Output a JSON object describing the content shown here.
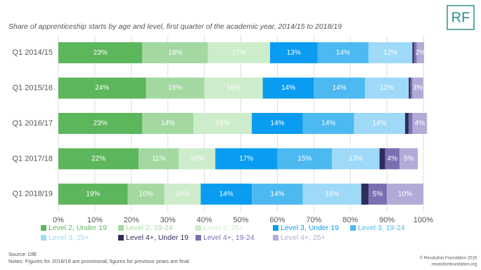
{
  "chart_data": {
    "type": "stacked_barh",
    "title": "Share of apprenticeship starts by age and level, first quarter of the academic year, 2014/15 to 2018/19",
    "logo": "RF",
    "source": "Source: DfE",
    "notes": "Notes: Figures for 2018/19 are provisional; figures for previous years are final",
    "credit": "© Resolution Foundation 2019",
    "website": "resolutionfoundation.org",
    "categories": [
      "Q1 2014/15",
      "Q1 2015/16",
      "Q1 2016/17",
      "Q1 2017/18",
      "Q1 2018/19"
    ],
    "series": [
      {
        "name": "Level 2, Under 19",
        "color": "#5cb65c",
        "values": [
          23,
          24,
          23,
          22,
          19
        ],
        "value_labels": [
          "23%",
          "24%",
          "23%",
          "22%",
          "19%"
        ]
      },
      {
        "name": "Level 2, 19-24",
        "color": "#a3d9a1",
        "values": [
          18,
          16,
          14,
          11,
          10
        ],
        "value_labels": [
          "18%",
          "16%",
          "14%",
          "11%",
          "10%"
        ]
      },
      {
        "name": "Level 2, 25+",
        "color": "#cdeccb",
        "values": [
          17,
          16,
          16,
          10,
          10
        ],
        "value_labels": [
          "17%",
          "16%",
          "16%",
          "10%",
          "10%"
        ]
      },
      {
        "name": "Level 3, Under 19",
        "color": "#0a9cf0",
        "values": [
          13,
          14,
          14,
          17,
          14
        ],
        "value_labels": [
          "13%",
          "14%",
          "14%",
          "17%",
          "14%"
        ]
      },
      {
        "name": "Level 3, 19-24",
        "color": "#4cb9f1",
        "values": [
          14,
          14,
          14,
          15,
          14
        ],
        "value_labels": [
          "14%",
          "14%",
          "14%",
          "15%",
          "14%"
        ]
      },
      {
        "name": "Level 3, 25+",
        "color": "#9fd9f8",
        "values": [
          12,
          12,
          14,
          13,
          16
        ],
        "value_labels": [
          "12%",
          "12%",
          "14%",
          "13%",
          "16%"
        ]
      },
      {
        "name": "Level 4+, Under 19",
        "color": "#2e2d5c",
        "values": [
          0.4,
          0.5,
          1,
          1.5,
          2
        ],
        "value_labels": [
          null,
          null,
          null,
          null,
          null
        ]
      },
      {
        "name": "Level 4+, 19-24",
        "color": "#7a6fb2",
        "values": [
          0.8,
          0.5,
          1,
          4,
          5
        ],
        "value_labels": [
          null,
          null,
          null,
          "4%",
          "5%"
        ]
      },
      {
        "name": "Level 4+, 25+",
        "color": "#b2abd8",
        "values": [
          2,
          3,
          4,
          5,
          10
        ],
        "value_labels": [
          "2%",
          "3%",
          "4%",
          "5%",
          "10%"
        ]
      }
    ],
    "xlim": [
      0,
      100
    ],
    "xticks": [
      {
        "value": 0,
        "label": "0%"
      },
      {
        "value": 10,
        "label": "10%"
      },
      {
        "value": 20,
        "label": "20%"
      },
      {
        "value": 30,
        "label": "30%"
      },
      {
        "value": 40,
        "label": "40%"
      },
      {
        "value": 50,
        "label": "50%"
      },
      {
        "value": 60,
        "label": "60%"
      },
      {
        "value": 70,
        "label": "70%"
      },
      {
        "value": 80,
        "label": "80%"
      },
      {
        "value": 90,
        "label": "90%"
      },
      {
        "value": 100,
        "label": "100%"
      }
    ],
    "grid": true
  }
}
